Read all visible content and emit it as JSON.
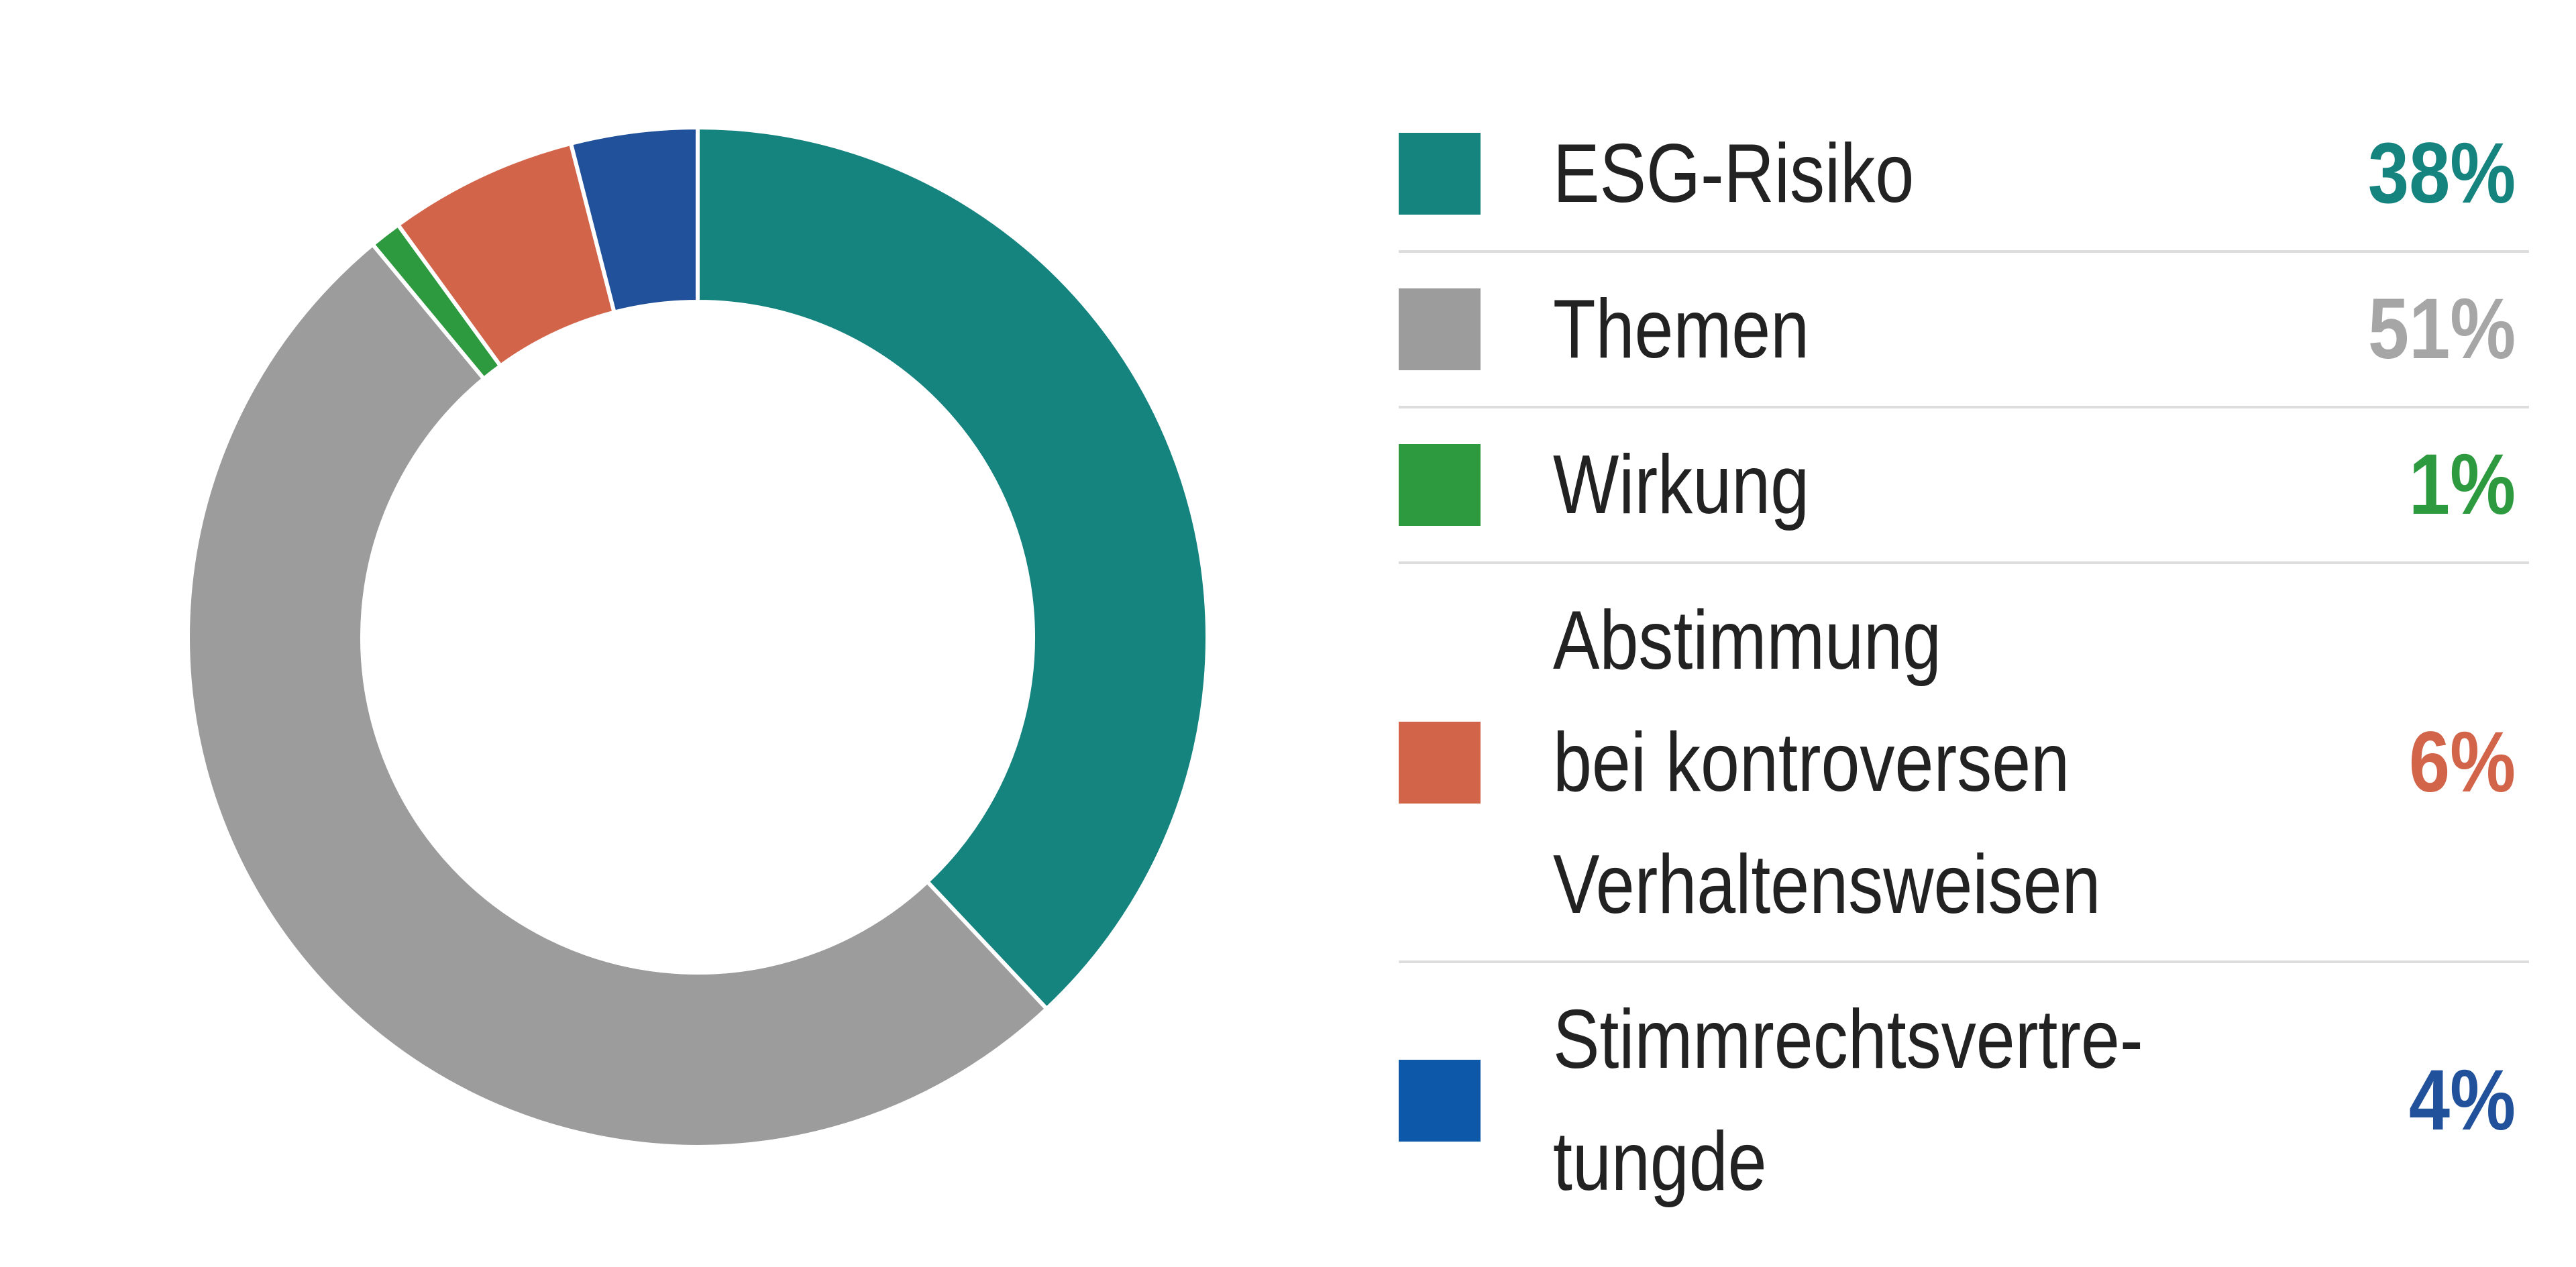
{
  "chart_data": {
    "type": "pie",
    "donut": true,
    "categories": [
      "ESG-Risiko",
      "Themen",
      "Wirkung",
      "Abstimmung bei kontroversen Verhaltensweisen",
      "Stimmrechtsvertre-tungde"
    ],
    "values": [
      38,
      51,
      1,
      6,
      4
    ],
    "value_labels": [
      "38%",
      "51%",
      "1%",
      "6%",
      "4%"
    ],
    "colors": [
      "#15837E",
      "#9C9C9C",
      "#2E9A3F",
      "#D2644A",
      "#21519A"
    ],
    "title": "",
    "legend_position": "right",
    "legend": [
      {
        "label_lines": [
          "ESG-Risiko"
        ],
        "value": "38%",
        "color": "#15837E",
        "value_color": "#15837E"
      },
      {
        "label_lines": [
          "Themen"
        ],
        "value": "51%",
        "color": "#9C9C9C",
        "value_color": "#A6A6A6"
      },
      {
        "label_lines": [
          "Wirkung"
        ],
        "value": "1%",
        "color": "#2E9A3F",
        "value_color": "#2E9A3F"
      },
      {
        "label_lines": [
          "Abstimmung",
          "bei kontroversen",
          "Verhaltensweisen"
        ],
        "value": "6%",
        "color": "#D2644A",
        "value_color": "#D2644A"
      },
      {
        "label_lines": [
          "Stimmrechtsvertre-",
          "tungde"
        ],
        "value": "4%",
        "color": "#0D58A8",
        "value_color": "#21519A"
      }
    ]
  }
}
